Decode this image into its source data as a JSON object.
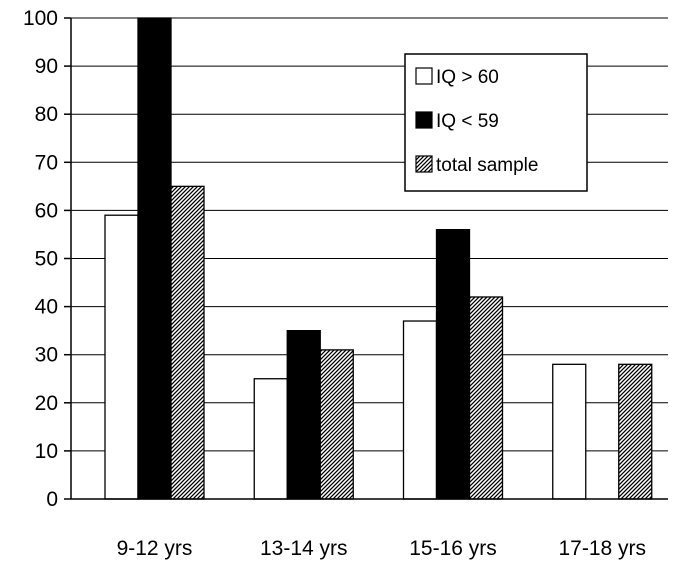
{
  "chart_data": {
    "type": "bar",
    "title": "",
    "xlabel": "",
    "ylabel": "",
    "ylim": [
      0,
      100
    ],
    "yticks": [
      0,
      10,
      20,
      30,
      40,
      50,
      60,
      70,
      80,
      90,
      100
    ],
    "grid": true,
    "legend_position": "top-right",
    "categories": [
      "9-12 yrs",
      "13-14 yrs",
      "15-16 yrs",
      "17-18 yrs"
    ],
    "series": [
      {
        "name": "IQ > 60",
        "style": "white",
        "values": [
          59,
          25,
          37,
          28
        ]
      },
      {
        "name": "IQ < 59",
        "style": "black",
        "values": [
          100,
          35,
          56,
          null
        ]
      },
      {
        "name": "total sample",
        "style": "hatched",
        "values": [
          65,
          31,
          42,
          28
        ]
      }
    ]
  }
}
